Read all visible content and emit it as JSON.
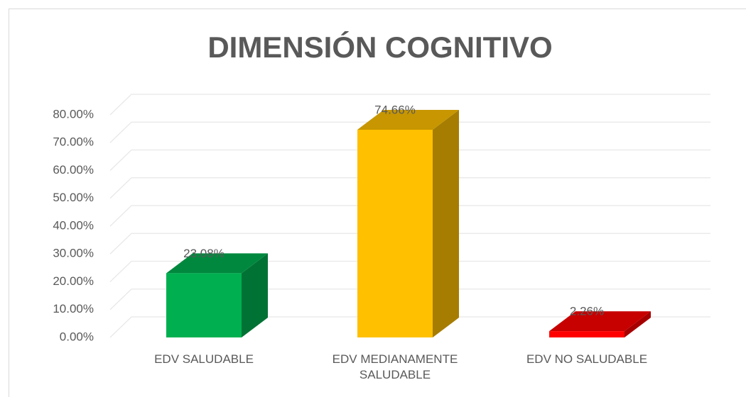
{
  "chart_data": {
    "type": "bar3d",
    "title": "DIMENSIÓN COGNITIVO",
    "categories": [
      "EDV SALUDABLE",
      "EDV MEDIANAMENTE SALUDABLE",
      "EDV NO SALUDABLE"
    ],
    "values": [
      23.08,
      74.66,
      2.26
    ],
    "value_labels": [
      "23.08%",
      "74.66%",
      "2.26%"
    ],
    "colors": [
      "#00b050",
      "#ffc000",
      "#ff0000"
    ],
    "ylim": [
      0,
      80
    ],
    "yticks": [
      {
        "value": 0,
        "label": "0.00%"
      },
      {
        "value": 10,
        "label": "10.00%"
      },
      {
        "value": 20,
        "label": "20.00%"
      },
      {
        "value": 30,
        "label": "30.00%"
      },
      {
        "value": 40,
        "label": "40.00%"
      },
      {
        "value": 50,
        "label": "50.00%"
      },
      {
        "value": 60,
        "label": "60.00%"
      },
      {
        "value": 70,
        "label": "70.00%"
      },
      {
        "value": 80,
        "label": "80.00%"
      }
    ],
    "grid": true
  }
}
